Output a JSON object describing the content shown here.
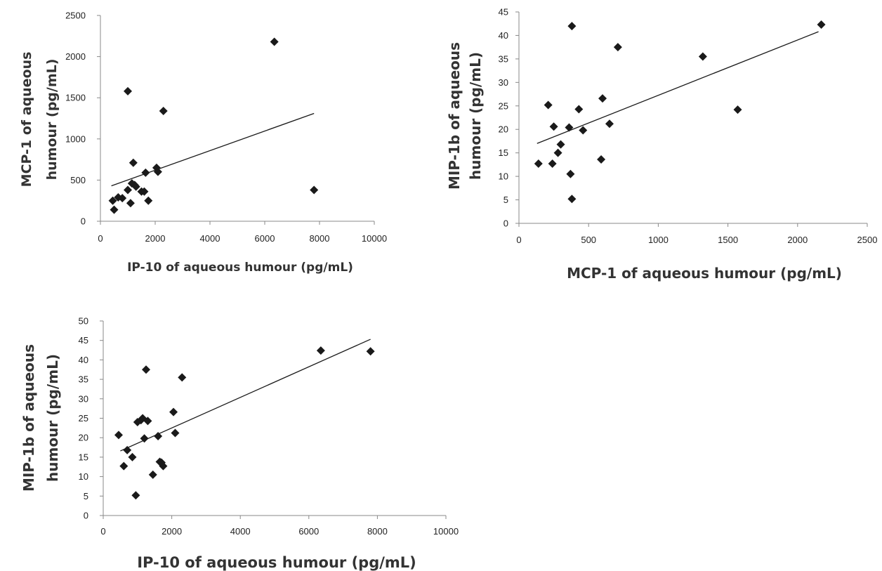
{
  "colors": {
    "marker": "#1a1a1a",
    "trend": "#1a1a1a",
    "axis": "#888888",
    "text": "#333333"
  },
  "chart_data": [
    {
      "type": "scatter",
      "xlabel": "IP-10 of aqueous humour  (pg/mL)",
      "ylabel": [
        "MCP-1 of aqueous",
        "humour  (pg/mL)"
      ],
      "xlim": [
        0,
        10000
      ],
      "ylim": [
        0,
        2500
      ],
      "xticks": [
        "0",
        "2000",
        "4000",
        "6000",
        "8000",
        "10000"
      ],
      "yticks": [
        "0",
        "500",
        "1000",
        "1500",
        "2000",
        "2500"
      ],
      "grid": false,
      "trendline": [
        [
          400,
          430
        ],
        [
          7800,
          1310
        ]
      ],
      "points": [
        [
          450,
          250
        ],
        [
          500,
          140
        ],
        [
          650,
          290
        ],
        [
          800,
          280
        ],
        [
          1000,
          380
        ],
        [
          1000,
          1580
        ],
        [
          1100,
          220
        ],
        [
          1150,
          460
        ],
        [
          1200,
          710
        ],
        [
          1250,
          440
        ],
        [
          1300,
          420
        ],
        [
          1500,
          360
        ],
        [
          1600,
          360
        ],
        [
          1650,
          590
        ],
        [
          1750,
          250
        ],
        [
          2050,
          650
        ],
        [
          2100,
          600
        ],
        [
          2300,
          1340
        ],
        [
          6350,
          2180
        ],
        [
          7800,
          380
        ]
      ]
    },
    {
      "type": "scatter",
      "xlabel": "MCP-1 of aqueous humour  (pg/mL)",
      "ylabel": [
        "MIP-1b of aqueous",
        "humour  (pg/mL)"
      ],
      "xlim": [
        0,
        2500
      ],
      "ylim": [
        0,
        45
      ],
      "xticks": [
        "0",
        "500",
        "1000",
        "1500",
        "2000",
        "2500"
      ],
      "yticks": [
        "0",
        "5",
        "10",
        "15",
        "20",
        "25",
        "30",
        "35",
        "40",
        "45"
      ],
      "grid": false,
      "trendline": [
        [
          130,
          17
        ],
        [
          2150,
          40.8
        ]
      ],
      "points": [
        [
          140,
          12.7
        ],
        [
          210,
          25.2
        ],
        [
          240,
          12.7
        ],
        [
          250,
          20.6
        ],
        [
          280,
          15.0
        ],
        [
          300,
          16.8
        ],
        [
          360,
          20.4
        ],
        [
          370,
          10.5
        ],
        [
          380,
          5.2
        ],
        [
          380,
          42.0
        ],
        [
          430,
          24.3
        ],
        [
          460,
          19.8
        ],
        [
          590,
          13.6
        ],
        [
          600,
          26.6
        ],
        [
          650,
          21.2
        ],
        [
          710,
          37.5
        ],
        [
          1320,
          35.5
        ],
        [
          1570,
          24.2
        ],
        [
          2170,
          42.3
        ]
      ]
    },
    {
      "type": "scatter",
      "xlabel": "IP-10 of aqueous humour  (pg/mL)",
      "ylabel": [
        "MIP-1b of aqueous",
        "humour  (pg/mL)"
      ],
      "xlim": [
        0,
        10000
      ],
      "ylim": [
        0,
        50
      ],
      "xticks": [
        "0",
        "2000",
        "4000",
        "6000",
        "8000",
        "10000"
      ],
      "yticks": [
        "0",
        "5",
        "10",
        "15",
        "20",
        "25",
        "30",
        "35",
        "40",
        "45",
        "50"
      ],
      "grid": false,
      "trendline": [
        [
          500,
          16.6
        ],
        [
          7800,
          45.3
        ]
      ],
      "points": [
        [
          450,
          20.7
        ],
        [
          600,
          12.7
        ],
        [
          700,
          16.8
        ],
        [
          850,
          15.0
        ],
        [
          950,
          5.2
        ],
        [
          1000,
          24.0
        ],
        [
          1100,
          24.5
        ],
        [
          1150,
          25.0
        ],
        [
          1200,
          19.8
        ],
        [
          1250,
          37.5
        ],
        [
          1300,
          24.3
        ],
        [
          1450,
          10.5
        ],
        [
          1600,
          20.4
        ],
        [
          1650,
          13.8
        ],
        [
          1700,
          13.6
        ],
        [
          1750,
          12.7
        ],
        [
          2050,
          26.6
        ],
        [
          2100,
          21.2
        ],
        [
          2300,
          35.5
        ],
        [
          6350,
          42.4
        ],
        [
          7800,
          42.2
        ]
      ]
    }
  ]
}
